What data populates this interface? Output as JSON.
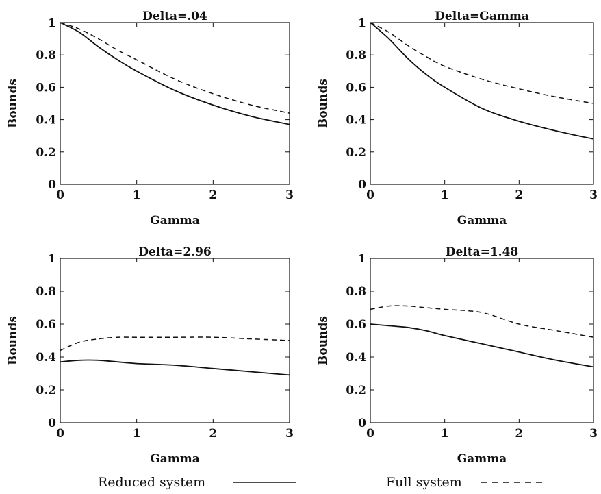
{
  "chart_data": [
    {
      "type": "line",
      "title": "Delta=.04",
      "xlabel": "Gamma",
      "ylabel": "Bounds",
      "xlim": [
        0,
        3
      ],
      "ylim": [
        0,
        1
      ],
      "x_ticks": [
        "0",
        "1",
        "2",
        "3"
      ],
      "y_ticks": [
        "0",
        "0.2",
        "0.4",
        "0.6",
        "0.8",
        "1"
      ],
      "x": [
        0,
        0.25,
        0.5,
        0.75,
        1.0,
        1.5,
        2.0,
        2.5,
        3.0
      ],
      "series": [
        {
          "name": "Reduced system",
          "values": [
            1.0,
            0.94,
            0.85,
            0.77,
            0.7,
            0.58,
            0.49,
            0.42,
            0.37
          ]
        },
        {
          "name": "Full system",
          "values": [
            1.0,
            0.96,
            0.9,
            0.83,
            0.77,
            0.65,
            0.56,
            0.49,
            0.44
          ]
        }
      ]
    },
    {
      "type": "line",
      "title": "Delta=Gamma",
      "xlabel": "Gamma",
      "ylabel": "Bounds",
      "xlim": [
        0,
        3
      ],
      "ylim": [
        0,
        1
      ],
      "x_ticks": [
        "0",
        "1",
        "2",
        "3"
      ],
      "y_ticks": [
        "0",
        "0.2",
        "0.4",
        "0.6",
        "0.8",
        "1"
      ],
      "x": [
        0,
        0.25,
        0.5,
        0.75,
        1.0,
        1.5,
        2.0,
        2.5,
        3.0
      ],
      "series": [
        {
          "name": "Reduced system",
          "values": [
            1.0,
            0.9,
            0.78,
            0.68,
            0.6,
            0.47,
            0.39,
            0.33,
            0.28
          ]
        },
        {
          "name": "Full system",
          "values": [
            1.0,
            0.94,
            0.86,
            0.79,
            0.73,
            0.65,
            0.59,
            0.54,
            0.5
          ]
        }
      ]
    },
    {
      "type": "line",
      "title": "Delta=2.96",
      "xlabel": "Gamma",
      "ylabel": "Bounds",
      "xlim": [
        0,
        3
      ],
      "ylim": [
        0,
        1
      ],
      "x_ticks": [
        "0",
        "1",
        "2",
        "3"
      ],
      "y_ticks": [
        "0",
        "0.2",
        "0.4",
        "0.6",
        "0.8",
        "1"
      ],
      "x": [
        0,
        0.25,
        0.5,
        0.75,
        1.0,
        1.5,
        2.0,
        2.5,
        3.0
      ],
      "series": [
        {
          "name": "Reduced system",
          "values": [
            0.37,
            0.38,
            0.38,
            0.37,
            0.36,
            0.35,
            0.33,
            0.31,
            0.29
          ]
        },
        {
          "name": "Full system",
          "values": [
            0.44,
            0.49,
            0.51,
            0.52,
            0.52,
            0.52,
            0.52,
            0.51,
            0.5
          ]
        }
      ]
    },
    {
      "type": "line",
      "title": "Delta=1.48",
      "xlabel": "Gamma",
      "ylabel": "Bounds",
      "xlim": [
        0,
        3
      ],
      "ylim": [
        0,
        1
      ],
      "x_ticks": [
        "0",
        "1",
        "2",
        "3"
      ],
      "y_ticks": [
        "0",
        "0.2",
        "0.4",
        "0.6",
        "0.8",
        "1"
      ],
      "x": [
        0,
        0.25,
        0.5,
        0.75,
        1.0,
        1.5,
        2.0,
        2.5,
        3.0
      ],
      "series": [
        {
          "name": "Reduced system",
          "values": [
            0.6,
            0.59,
            0.58,
            0.56,
            0.53,
            0.48,
            0.43,
            0.38,
            0.34
          ]
        },
        {
          "name": "Full system",
          "values": [
            0.69,
            0.71,
            0.71,
            0.7,
            0.69,
            0.67,
            0.6,
            0.56,
            0.52
          ]
        }
      ]
    }
  ],
  "legend": {
    "items": [
      {
        "label": "Reduced system",
        "style": "solid"
      },
      {
        "label": "Full system",
        "style": "dashed"
      }
    ]
  },
  "colors": {
    "line": "#111111",
    "background": "#ffffff"
  }
}
